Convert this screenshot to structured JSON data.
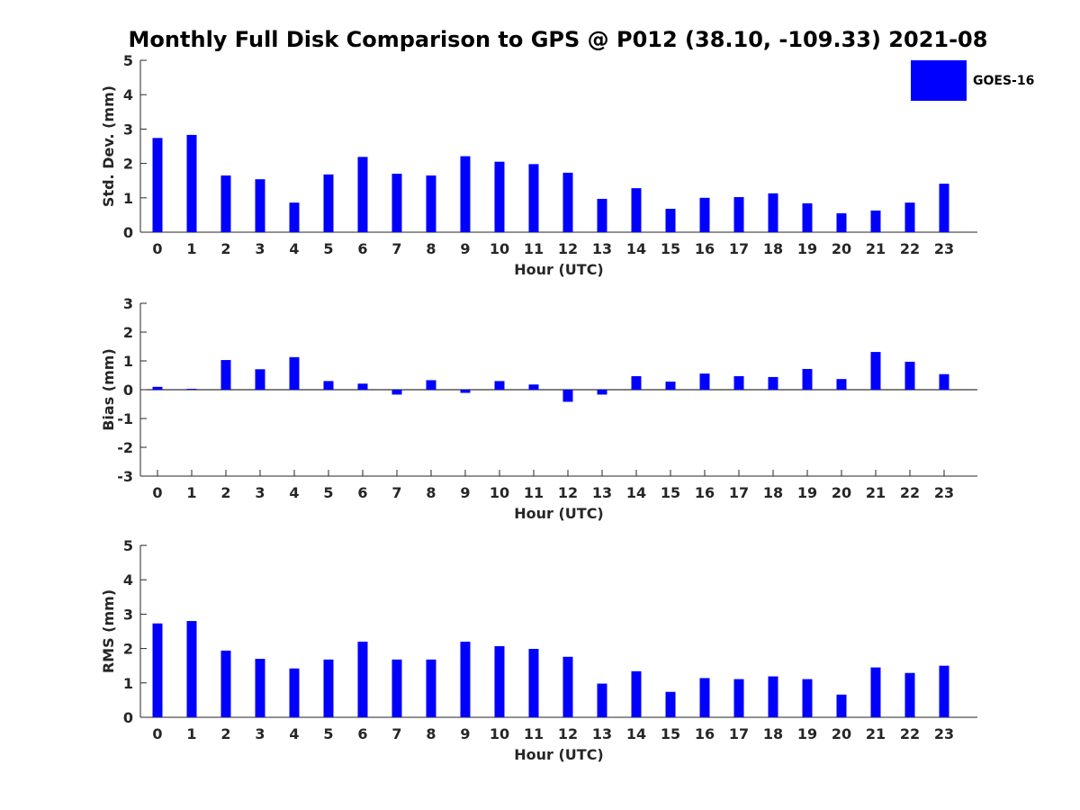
{
  "title": "Monthly Full Disk Comparison to GPS @ P012 (38.10, -109.33) 2021-08",
  "legend": {
    "label": "GOES-16",
    "color": "#0000ff"
  },
  "chart_data": [
    {
      "type": "bar",
      "id": "std",
      "xlabel": "Hour (UTC)",
      "ylabel": "Std. Dev. (mm)",
      "ylim": [
        0,
        5
      ],
      "yticks": [
        0,
        1,
        2,
        3,
        4,
        5
      ],
      "categories": [
        "0",
        "1",
        "2",
        "3",
        "4",
        "5",
        "6",
        "7",
        "8",
        "9",
        "10",
        "11",
        "12",
        "13",
        "14",
        "15",
        "16",
        "17",
        "18",
        "19",
        "20",
        "21",
        "22",
        "23"
      ],
      "series": [
        {
          "name": "GOES-16",
          "color": "#0000ff",
          "values": [
            2.74,
            2.83,
            1.65,
            1.54,
            0.86,
            1.68,
            2.19,
            1.7,
            1.65,
            2.21,
            2.05,
            1.98,
            1.73,
            0.97,
            1.28,
            0.68,
            1.0,
            1.02,
            1.13,
            0.84,
            0.55,
            0.63,
            0.86,
            1.41
          ]
        }
      ]
    },
    {
      "type": "bar",
      "id": "bias",
      "xlabel": "Hour (UTC)",
      "ylabel": "Bias (mm)",
      "ylim": [
        -3,
        3
      ],
      "yticks": [
        -3,
        -2,
        -1,
        0,
        1,
        2,
        3
      ],
      "categories": [
        "0",
        "1",
        "2",
        "3",
        "4",
        "5",
        "6",
        "7",
        "8",
        "9",
        "10",
        "11",
        "12",
        "13",
        "14",
        "15",
        "16",
        "17",
        "18",
        "19",
        "20",
        "21",
        "22",
        "23"
      ],
      "series": [
        {
          "name": "GOES-16",
          "color": "#0000ff",
          "values": [
            0.1,
            0.03,
            1.03,
            0.71,
            1.13,
            0.3,
            0.21,
            -0.17,
            0.33,
            -0.11,
            0.3,
            0.18,
            -0.42,
            -0.17,
            0.47,
            0.28,
            0.56,
            0.47,
            0.44,
            0.72,
            0.37,
            1.31,
            0.97,
            0.54
          ]
        }
      ]
    },
    {
      "type": "bar",
      "id": "rms",
      "xlabel": "Hour (UTC)",
      "ylabel": "RMS (mm)",
      "ylim": [
        0,
        5
      ],
      "yticks": [
        0,
        1,
        2,
        3,
        4,
        5
      ],
      "categories": [
        "0",
        "1",
        "2",
        "3",
        "4",
        "5",
        "6",
        "7",
        "8",
        "9",
        "10",
        "11",
        "12",
        "13",
        "14",
        "15",
        "16",
        "17",
        "18",
        "19",
        "20",
        "21",
        "22",
        "23"
      ],
      "series": [
        {
          "name": "GOES-16",
          "color": "#0000ff",
          "values": [
            2.73,
            2.8,
            1.94,
            1.7,
            1.42,
            1.68,
            2.2,
            1.68,
            1.68,
            2.2,
            2.07,
            1.99,
            1.76,
            0.98,
            1.34,
            0.74,
            1.14,
            1.11,
            1.19,
            1.11,
            0.66,
            1.45,
            1.29,
            1.5
          ]
        }
      ]
    }
  ]
}
